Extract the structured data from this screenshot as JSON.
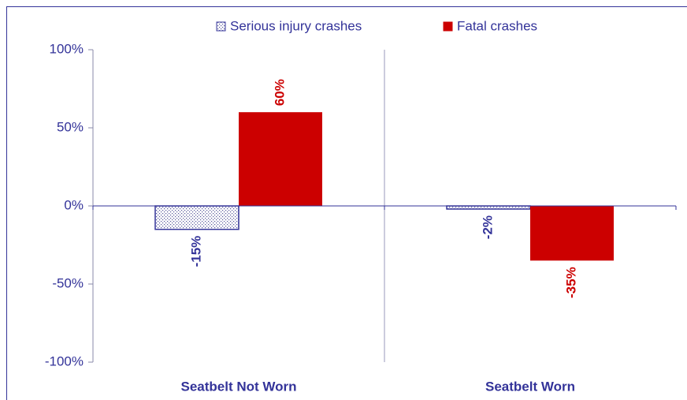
{
  "chart_data": {
    "type": "bar",
    "categories": [
      "Seatbelt Not Worn",
      "Seatbelt Worn"
    ],
    "series": [
      {
        "name": "Serious injury crashes",
        "color": "#333399",
        "values": [
          -15,
          -2
        ],
        "value_labels": [
          "-15%",
          "-2%"
        ]
      },
      {
        "name": "Fatal crashes",
        "color": "#cc0000",
        "values": [
          60,
          -35
        ],
        "value_labels": [
          "60%",
          "-35%"
        ]
      }
    ],
    "ylim": [
      -100,
      100
    ],
    "yticks": [
      {
        "value": -100,
        "label": "-100%"
      },
      {
        "value": -50,
        "label": "-50%"
      },
      {
        "value": 0,
        "label": "0%"
      },
      {
        "value": 50,
        "label": "50%"
      },
      {
        "value": 100,
        "label": "100%"
      }
    ],
    "legend": "top"
  }
}
